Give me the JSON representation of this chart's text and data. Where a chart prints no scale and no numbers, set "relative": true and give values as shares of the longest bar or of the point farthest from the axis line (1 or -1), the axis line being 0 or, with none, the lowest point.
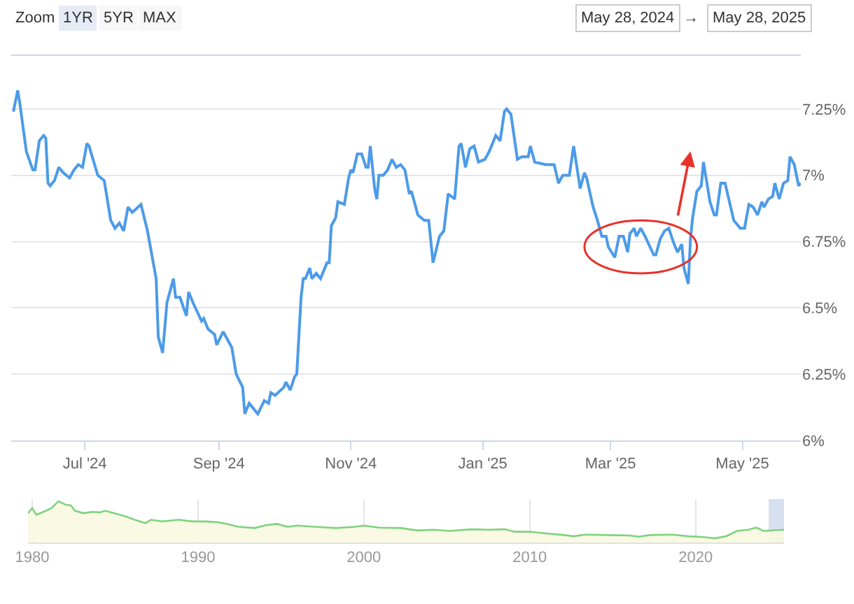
{
  "chart_data": [
    {
      "type": "line",
      "annotations": [
        "Zoom",
        "1YR",
        "5YR",
        "MAX",
        "May 28, 2024",
        "→",
        "May 28, 2025"
      ],
      "series": [
        {
          "color": "#4c9be8",
          "x": [
            "2024-05-29",
            "2024-05-31",
            "2024-06-01",
            "2024-06-03",
            "2024-06-04",
            "2024-06-07",
            "2024-06-08",
            "2024-06-10",
            "2024-06-12",
            "2024-06-13",
            "2024-06-14",
            "2024-06-15",
            "2024-06-17",
            "2024-06-19",
            "2024-06-21",
            "2024-06-24",
            "2024-06-26",
            "2024-06-28",
            "2024-06-30",
            "2024-07-02",
            "2024-07-03",
            "2024-07-07",
            "2024-07-10",
            "2024-07-13",
            "2024-07-15",
            "2024-07-17",
            "2024-07-19",
            "2024-07-21",
            "2024-07-23",
            "2024-07-27",
            "2024-07-30",
            "2024-08-03",
            "2024-08-04",
            "2024-08-06",
            "2024-08-08",
            "2024-08-11",
            "2024-08-12",
            "2024-08-14",
            "2024-08-17",
            "2024-08-18",
            "2024-08-20",
            "2024-08-24",
            "2024-08-25",
            "2024-08-27",
            "2024-08-30",
            "2024-08-31",
            "2024-09-03",
            "2024-09-07",
            "2024-09-09",
            "2024-09-12",
            "2024-09-13",
            "2024-09-15",
            "2024-09-19",
            "2024-09-22",
            "2024-09-24",
            "2024-09-25",
            "2024-09-27",
            "2024-10-01",
            "2024-10-02",
            "2024-10-04",
            "2024-10-06",
            "2024-10-07",
            "2024-10-09",
            "2024-10-10",
            "2024-10-11",
            "2024-10-13",
            "2024-10-14",
            "2024-10-16",
            "2024-10-18",
            "2024-10-21",
            "2024-10-22",
            "2024-10-23",
            "2024-10-25",
            "2024-10-26",
            "2024-10-29",
            "2024-10-31",
            "2024-11-01",
            "2024-11-02",
            "2024-11-04",
            "2024-11-06",
            "2024-11-08",
            "2024-11-09",
            "2024-11-10",
            "2024-11-12",
            "2024-11-13",
            "2024-11-14",
            "2024-11-16",
            "2024-11-18",
            "2024-11-20",
            "2024-11-22",
            "2024-11-24",
            "2024-11-26",
            "2024-11-28",
            "2024-11-29",
            "2024-12-02",
            "2024-12-05",
            "2024-12-07",
            "2024-12-09",
            "2024-12-12",
            "2024-12-14",
            "2024-12-16",
            "2024-12-19",
            "2024-12-21",
            "2024-12-22",
            "2024-12-24",
            "2024-12-26",
            "2024-12-28",
            "2024-12-30",
            "2025-01-02",
            "2025-01-04",
            "2025-01-07",
            "2025-01-09",
            "2025-01-11",
            "2025-01-12",
            "2025-01-14",
            "2025-01-17",
            "2025-01-19",
            "2025-01-22",
            "2025-01-23",
            "2025-01-25",
            "2025-01-30",
            "2025-02-03",
            "2025-02-05",
            "2025-02-07",
            "2025-02-10",
            "2025-02-12",
            "2025-02-15",
            "2025-02-17",
            "2025-02-18",
            "2025-02-21",
            "2025-02-23",
            "2025-02-25",
            "2025-02-27",
            "2025-02-28",
            "2025-03-03",
            "2025-03-05",
            "2025-03-07",
            "2025-03-09",
            "2025-03-10",
            "2025-03-12",
            "2025-03-13",
            "2025-03-15",
            "2025-03-17",
            "2025-03-21",
            "2025-03-22",
            "2025-03-24",
            "2025-03-26",
            "2025-03-28",
            "2025-03-30",
            "2025-04-01",
            "2025-04-03",
            "2025-04-04",
            "2025-04-06",
            "2025-04-07",
            "2025-04-08",
            "2025-04-10",
            "2025-04-12",
            "2025-04-13",
            "2025-04-16",
            "2025-04-18",
            "2025-04-19",
            "2025-04-21",
            "2025-04-23",
            "2025-04-25",
            "2025-04-27",
            "2025-04-30",
            "2025-05-02",
            "2025-05-04",
            "2025-05-06",
            "2025-05-08",
            "2025-05-10",
            "2025-05-11",
            "2025-05-13",
            "2025-05-15",
            "2025-05-16",
            "2025-05-18",
            "2025-05-20",
            "2025-05-22",
            "2025-05-23",
            "2025-05-25",
            "2025-05-27",
            "2025-05-28"
          ],
          "values": [
            7.24,
            7.32,
            7.27,
            7.15,
            7.09,
            7.02,
            7.02,
            7.13,
            7.15,
            7.14,
            6.97,
            6.96,
            6.98,
            7.03,
            7.01,
            6.99,
            7.02,
            7.04,
            7.03,
            7.12,
            7.11,
            7.0,
            6.98,
            6.83,
            6.8,
            6.82,
            6.79,
            6.88,
            6.86,
            6.89,
            6.79,
            6.61,
            6.39,
            6.33,
            6.52,
            6.61,
            6.54,
            6.54,
            6.47,
            6.56,
            6.52,
            6.45,
            6.46,
            6.42,
            6.4,
            6.36,
            6.41,
            6.35,
            6.25,
            6.2,
            6.1,
            6.14,
            6.1,
            6.15,
            6.14,
            6.18,
            6.17,
            6.2,
            6.22,
            6.19,
            6.24,
            6.25,
            6.54,
            6.61,
            6.61,
            6.65,
            6.61,
            6.63,
            6.61,
            6.67,
            6.67,
            6.81,
            6.84,
            6.9,
            6.89,
            6.99,
            7.02,
            7.01,
            7.08,
            7.08,
            7.03,
            7.03,
            7.11,
            6.95,
            6.91,
            7.0,
            7.0,
            7.02,
            7.06,
            7.03,
            7.04,
            7.02,
            6.93,
            6.94,
            6.85,
            6.83,
            6.83,
            6.67,
            6.77,
            6.79,
            6.93,
            6.91,
            7.11,
            7.12,
            7.03,
            7.1,
            7.11,
            7.05,
            7.06,
            7.09,
            7.15,
            7.13,
            7.24,
            7.25,
            7.23,
            7.06,
            7.07,
            7.07,
            7.11,
            7.05,
            7.04,
            7.04,
            6.97,
            7.0,
            7.0,
            7.11,
            6.95,
            7.01,
            6.99,
            6.88,
            6.83,
            6.77,
            6.77,
            6.73,
            6.69,
            6.77,
            6.77,
            6.71,
            6.78,
            6.8,
            6.77,
            6.8,
            6.77,
            6.7,
            6.7,
            6.76,
            6.79,
            6.8,
            6.75,
            6.71,
            6.74,
            6.65,
            6.59,
            6.76,
            6.84,
            6.94,
            6.96,
            7.05,
            6.9,
            6.85,
            6.85,
            6.97,
            6.97,
            6.9,
            6.83,
            6.8,
            6.8,
            6.89,
            6.88,
            6.85,
            6.9,
            6.88,
            6.91,
            6.92,
            6.97,
            6.91,
            6.97,
            6.98,
            7.07,
            7.04,
            6.96,
            6.97
          ]
        }
      ],
      "xlim": [
        "2024-05-28",
        "2025-05-28"
      ],
      "xticks": [
        {
          "value": "2024-07-01",
          "label": "Jul '24"
        },
        {
          "value": "2024-09-01",
          "label": "Sep '24"
        },
        {
          "value": "2024-11-01",
          "label": "Nov '24"
        },
        {
          "value": "2025-01-01",
          "label": "Jan '25"
        },
        {
          "value": "2025-03-01",
          "label": "Mar '25"
        },
        {
          "value": "2025-05-01",
          "label": "May '25"
        }
      ],
      "ylim": [
        6,
        7.45
      ],
      "yticks": [
        {
          "value": 6,
          "label": "6%"
        },
        {
          "value": 6.25,
          "label": "6.25%"
        },
        {
          "value": 6.5,
          "label": "6.5%"
        },
        {
          "value": 6.75,
          "label": "6.75%"
        },
        {
          "value": 7,
          "label": "7%"
        },
        {
          "value": 7.25,
          "label": "7.25%"
        }
      ],
      "grid": "y"
    },
    {
      "type": "area",
      "relative": true,
      "grid": "x",
      "series": [
        {
          "color": "#7fd27f",
          "x": [
            "1979-10",
            "1980-01",
            "1980-04",
            "1980-09",
            "1981-03",
            "1981-08",
            "1982-01",
            "1982-05",
            "1982-08",
            "1983-02",
            "1983-08",
            "1984-02",
            "1984-06",
            "1984-12",
            "1985-08",
            "1986-04",
            "1986-11",
            "1987-03",
            "1987-11",
            "1988-11",
            "1989-09",
            "1990-07",
            "1991-03",
            "1991-10",
            "1992-06",
            "1993-06",
            "1994-02",
            "1994-10",
            "1995-06",
            "1996-01",
            "1997-01",
            "1998-05",
            "1999-07",
            "2000-01",
            "2000-12",
            "2002-04",
            "2003-04",
            "2004-03",
            "2005-03",
            "2006-07",
            "2007-07",
            "2008-07",
            "2009-02",
            "2010-02",
            "2010-10",
            "2012-02",
            "2012-09",
            "2013-05",
            "2014-09",
            "2016-01",
            "2016-08",
            "2017-04",
            "2018-08",
            "2019-08",
            "2020-07",
            "2021-03",
            "2021-11",
            "2022-07",
            "2023-03",
            "2023-09",
            "2024-02",
            "2025-05"
          ],
          "values": [
            0.71,
            0.83,
            0.67,
            0.74,
            0.83,
            1.0,
            0.92,
            0.9,
            0.77,
            0.71,
            0.74,
            0.73,
            0.77,
            0.71,
            0.64,
            0.54,
            0.47,
            0.55,
            0.51,
            0.55,
            0.51,
            0.51,
            0.49,
            0.45,
            0.38,
            0.35,
            0.42,
            0.45,
            0.38,
            0.41,
            0.38,
            0.35,
            0.38,
            0.41,
            0.36,
            0.35,
            0.29,
            0.31,
            0.28,
            0.32,
            0.31,
            0.32,
            0.26,
            0.26,
            0.23,
            0.18,
            0.15,
            0.19,
            0.18,
            0.17,
            0.14,
            0.18,
            0.19,
            0.15,
            0.13,
            0.1,
            0.15,
            0.28,
            0.31,
            0.36,
            0.28,
            0.31
          ]
        }
      ],
      "xlim": [
        "1979-10",
        "2025-05"
      ],
      "xticks": [
        "1980",
        "1990",
        "2000",
        "2010",
        "2020"
      ],
      "bands": [
        {
          "axis": "x",
          "from": "2024-05-28",
          "to": "2025-05-28",
          "color": "#d6e0f0"
        }
      ]
    }
  ]
}
